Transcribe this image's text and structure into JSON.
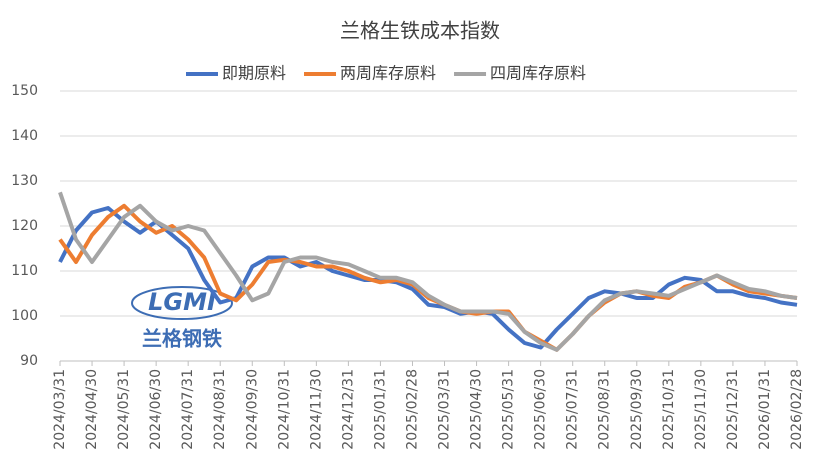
{
  "chart_data": {
    "type": "line",
    "title": "兰格生铁成本指数",
    "categories": [
      "2024/03/31",
      null,
      "2024/04/30",
      null,
      "2024/05/31",
      null,
      "2024/06/30",
      null,
      "2024/07/31",
      null,
      "2024/08/31",
      null,
      "2024/09/30",
      null,
      "2024/10/31",
      null,
      "2024/11/30",
      null,
      "2024/12/31",
      null,
      "2025/01/31",
      null,
      "2025/02/28",
      null,
      "2025/03/31",
      null,
      "2025/04/30",
      null,
      "2025/05/31",
      null,
      "2025/06/30",
      null,
      "2025/07/31",
      null,
      "2025/08/31",
      null,
      "2025/09/30",
      null,
      "2025/10/31",
      null,
      "2025/11/30",
      null,
      "2025/12/31",
      null,
      "2026/01/31",
      null,
      "2026/02/28"
    ],
    "series": [
      {
        "name": "即期原料",
        "color": "#4472c4",
        "values": [
          112,
          119,
          123,
          124,
          121,
          118.5,
          121,
          118,
          115,
          108,
          103,
          104,
          111,
          113,
          113,
          111,
          112,
          110,
          109,
          108,
          108,
          107.5,
          106,
          102.5,
          102,
          100.5,
          101,
          100.5,
          97,
          94,
          93,
          97,
          100.5,
          104,
          105.5,
          105,
          104,
          104,
          107,
          108.5,
          108,
          105.5,
          105.5,
          104.5,
          104,
          103,
          102.5
        ]
      },
      {
        "name": "两周库存原料",
        "color": "#ed7d31",
        "values": [
          117,
          112,
          118,
          122,
          124.5,
          121,
          118.5,
          120,
          117,
          113,
          105,
          103.5,
          107,
          112,
          112.5,
          112,
          111,
          111,
          110,
          108.5,
          107.5,
          108,
          107,
          104,
          102.5,
          101,
          100.5,
          101,
          101,
          96.5,
          94.5,
          92.5,
          96,
          100,
          103,
          105,
          105.5,
          104.5,
          104,
          106.5,
          107.5,
          109,
          107,
          105.5,
          105,
          104.5,
          104
        ]
      },
      {
        "name": "四周库存原料",
        "color": "#a5a5a5",
        "values": [
          127.5,
          117,
          112,
          117,
          122,
          124.5,
          121,
          119,
          120,
          119,
          114,
          109,
          103.5,
          105,
          112,
          113,
          113,
          112,
          111.5,
          110,
          108.5,
          108.5,
          107.5,
          104.5,
          102.5,
          101,
          101,
          101,
          100.5,
          96.5,
          94,
          92.5,
          96,
          100,
          103.5,
          105,
          105.5,
          105,
          104.5,
          106,
          107.5,
          109,
          107.5,
          106,
          105.5,
          104.5,
          104
        ]
      }
    ],
    "ylim": [
      90,
      150
    ],
    "yticks": [
      90,
      100,
      110,
      120,
      130,
      140,
      150
    ],
    "grid": true,
    "legend": "top",
    "annotations": [
      "LGMI",
      "兰格钢铁"
    ]
  }
}
